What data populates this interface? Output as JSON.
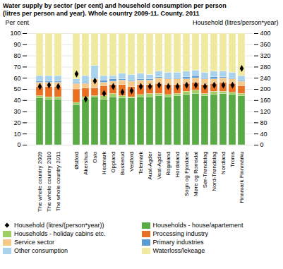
{
  "chart_data": {
    "type": "bar",
    "stacked": true,
    "title": "Water supply by sector (per cent) and household consumption per person",
    "subtitle": "(litres per person and year). Whole country 2009-11. County. 2011",
    "ylabel": "Per cent",
    "y2label": "Household (litres/person*year)",
    "categories": [
      "The whole country 2009",
      "The whole country 2010",
      "The whole country 2011",
      null,
      "Østfold",
      "Akershus",
      "Oslo",
      "Hedmark",
      "Oppland",
      "Buskerud",
      "Vestfold",
      "Telemark",
      "Aust-Agder",
      "Vest-Agder",
      "Rogaland",
      "Hordaland",
      "Sogn og Fjordane",
      "Møre og Romsdal",
      "Sør-Trøndelag",
      "Nord-Trøndelag",
      "Nordland",
      "Troms",
      "Finnmark Finnmárku"
    ],
    "series": [
      {
        "name": "Households - house/apartement",
        "color": "#5aaa46",
        "values": [
          42,
          41,
          41,
          0,
          36,
          41,
          43,
          41,
          43,
          42,
          42,
          43,
          43,
          44,
          43,
          44,
          45,
          46,
          44,
          45,
          46,
          45,
          44
        ]
      },
      {
        "name": "Households - holiday cabins etc.",
        "color": "#9ecf60",
        "values": [
          2,
          2,
          2,
          0,
          2,
          2,
          1,
          3,
          3,
          2,
          1,
          2,
          3,
          2,
          2,
          2,
          3,
          3,
          2,
          3,
          2,
          2,
          2
        ]
      },
      {
        "name": "Processing industry",
        "color": "#e87020",
        "values": [
          8,
          9,
          9,
          0,
          12,
          8,
          7,
          9,
          8,
          10,
          9,
          9,
          8,
          9,
          9,
          8,
          7,
          7,
          8,
          7,
          8,
          8,
          7
        ]
      },
      {
        "name": "Service sector",
        "color": "#f5c98a",
        "values": [
          4,
          4,
          4,
          0,
          5,
          4,
          8,
          3,
          3,
          4,
          5,
          4,
          4,
          5,
          5,
          5,
          4,
          4,
          5,
          4,
          4,
          4,
          4
        ]
      },
      {
        "name": "Primary industries",
        "color": "#5b9bd5",
        "values": [
          1,
          1,
          1,
          0,
          1,
          1,
          0,
          2,
          2,
          1,
          1,
          1,
          1,
          1,
          1,
          1,
          2,
          2,
          1,
          2,
          1,
          1,
          1
        ]
      },
      {
        "name": "Other consumption",
        "color": "#a9d3ec",
        "values": [
          5,
          5,
          5,
          0,
          3,
          6,
          12,
          4,
          3,
          5,
          5,
          5,
          4,
          5,
          5,
          5,
          5,
          5,
          5,
          5,
          5,
          5,
          4
        ]
      },
      {
        "name": "Waterloss/lekeage",
        "color": "#f0eaa0",
        "values": [
          38,
          38,
          38,
          0,
          41,
          38,
          29,
          38,
          38,
          36,
          37,
          36,
          37,
          34,
          35,
          35,
          34,
          33,
          35,
          34,
          34,
          35,
          38
        ]
      },
      {
        "name": "Household (litres/(person*year))",
        "type": "scatter",
        "marker": "diamond",
        "color": "#000000",
        "axis": "y2",
        "values": [
          210,
          215,
          210,
          null,
          255,
          165,
          230,
          185,
          210,
          190,
          195,
          210,
          210,
          215,
          210,
          210,
          215,
          215,
          210,
          215,
          215,
          215,
          275
        ]
      }
    ],
    "ylim": [
      0,
      100
    ],
    "yticks": [
      0,
      10,
      20,
      30,
      40,
      50,
      60,
      70,
      80,
      90,
      100
    ],
    "y2lim": [
      0,
      400
    ],
    "y2ticks": [
      0,
      40,
      80,
      120,
      160,
      200,
      240,
      280,
      320,
      360,
      400
    ],
    "grid": true,
    "legend": "bottom"
  }
}
